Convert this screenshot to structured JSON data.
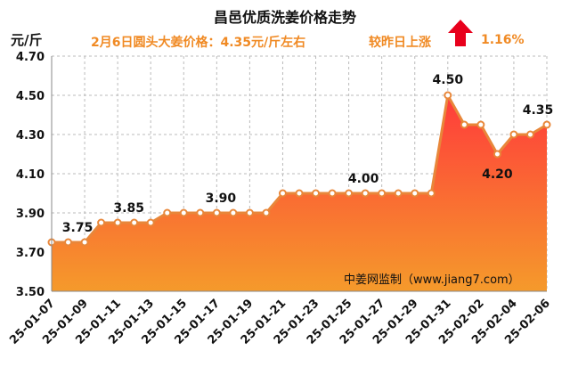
{
  "chart_data": {
    "type": "area",
    "title": "昌邑优质洗姜价格走势",
    "subtitle": "2月6日圆头大姜价格：4.35元/斤左右",
    "change_text": "较昨日上涨",
    "change_value": "1.16%",
    "change_direction": "up",
    "ylabel": "元/斤",
    "ylim": [
      3.5,
      4.7
    ],
    "yticks": [
      "3.50",
      "3.70",
      "3.90",
      "4.10",
      "4.30",
      "4.50",
      "4.70"
    ],
    "x": [
      "25-01-07",
      "25-01-08",
      "25-01-09",
      "25-01-10",
      "25-01-11",
      "25-01-12",
      "25-01-13",
      "25-01-14",
      "25-01-15",
      "25-01-16",
      "25-01-17",
      "25-01-18",
      "25-01-19",
      "25-01-20",
      "25-01-21",
      "25-01-22",
      "25-01-23",
      "25-01-24",
      "25-01-25",
      "25-01-26",
      "25-01-27",
      "25-01-28",
      "25-01-29",
      "25-01-30",
      "25-01-31",
      "25-02-01",
      "25-02-02",
      "25-02-03",
      "25-02-04",
      "25-02-05",
      "25-02-06"
    ],
    "xtick_labels": [
      "25-01-07",
      "25-01-09",
      "25-01-11",
      "25-01-13",
      "25-01-15",
      "25-01-17",
      "25-01-19",
      "25-01-21",
      "25-01-23",
      "25-01-25",
      "25-01-27",
      "25-01-29",
      "25-01-31",
      "25-02-02",
      "25-02-04",
      "25-02-06"
    ],
    "values": [
      3.75,
      3.75,
      3.75,
      3.85,
      3.85,
      3.85,
      3.85,
      3.9,
      3.9,
      3.9,
      3.9,
      3.9,
      3.9,
      3.9,
      4.0,
      4.0,
      4.0,
      4.0,
      4.0,
      4.0,
      4.0,
      4.0,
      4.0,
      4.0,
      4.5,
      4.35,
      4.35,
      4.2,
      4.3,
      4.3,
      4.35
    ],
    "data_labels": [
      {
        "index": 2,
        "text": "3.75"
      },
      {
        "index": 5,
        "text": "3.85"
      },
      {
        "index": 11,
        "text": "3.90"
      },
      {
        "index": 19,
        "text": "4.00"
      },
      {
        "index": 24,
        "text": "4.50"
      },
      {
        "index": 27,
        "text": "4.20"
      },
      {
        "index": 30,
        "text": "4.35"
      }
    ],
    "watermark": "中姜网监制（www.jiang7.com）",
    "grid": true,
    "colors": {
      "line": "#e8873a",
      "fill_top": "#ff3b3b",
      "fill_bottom": "#f59a2b",
      "arrow": "#e8001c",
      "subtitle": "#f08a24"
    }
  }
}
